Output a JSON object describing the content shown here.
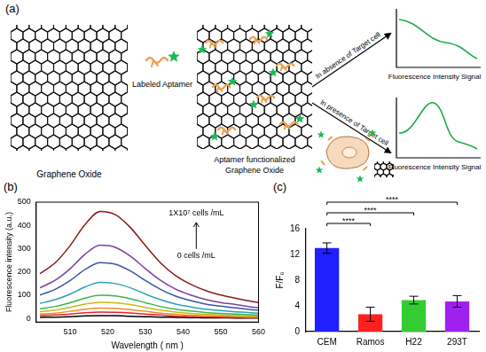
{
  "panel_labels": [
    "(a)",
    "(b)",
    "(c)"
  ],
  "diagram": {
    "graphene_oxide": "Graphene Oxide",
    "labeled_aptamer": "Labeled Aptamer",
    "functionalized": [
      "Aptamer functionalized",
      "Graphene Oxide"
    ],
    "absence": "In absence of Target cell",
    "presence": "In presence of Target cell",
    "signal_labels": [
      "Fluorescence Intensity Signal",
      "Fluorescence Intensity Signal"
    ]
  },
  "chart_data": [
    {
      "type": "line",
      "x_label": "Wavelength ( nm )",
      "y_label": "Fluorescence intensity (a.u.)",
      "annotations": [
        "1X10⁷ cells /mL",
        "0 cells /mL"
      ],
      "x": [
        502,
        506,
        510,
        514,
        518,
        522,
        526,
        530,
        534,
        538,
        542,
        546,
        550,
        554,
        558,
        560
      ],
      "series": [
        {
          "color": "#8b1a1a",
          "values": [
            193,
            239,
            313,
            405,
            460,
            446,
            391,
            313,
            239,
            184,
            147,
            120,
            101,
            87,
            74,
            69
          ]
        },
        {
          "color": "#7b3fa0",
          "values": [
            132,
            164,
            214,
            277,
            315,
            306,
            268,
            214,
            164,
            126,
            101,
            82,
            69,
            60,
            50,
            47
          ]
        },
        {
          "color": "#3a53a4",
          "values": [
            101,
            125,
            163,
            211,
            240,
            233,
            204,
            163,
            125,
            96,
            77,
            62,
            53,
            46,
            38,
            36
          ]
        },
        {
          "color": "#2aa1b0",
          "values": [
            65,
            81,
            105,
            136,
            155,
            150,
            132,
            105,
            81,
            62,
            50,
            40,
            34,
            29,
            25,
            23
          ]
        },
        {
          "color": "#3cb44b",
          "values": [
            42,
            52,
            68,
            88,
            100,
            97,
            85,
            68,
            52,
            40,
            32,
            26,
            22,
            19,
            16,
            15
          ]
        },
        {
          "color": "#c9b81a",
          "values": [
            29,
            36,
            48,
            62,
            70,
            68,
            60,
            48,
            36,
            28,
            22,
            18,
            15,
            13,
            11,
            11
          ]
        },
        {
          "color": "#f08a24",
          "values": [
            19,
            23,
            31,
            40,
            45,
            44,
            38,
            31,
            23,
            18,
            14,
            12,
            10,
            9,
            7,
            7
          ]
        },
        {
          "color": "#e6262a",
          "values": [
            12,
            15,
            19,
            25,
            28,
            27,
            24,
            19,
            15,
            11,
            9,
            7,
            6,
            5,
            4,
            4
          ]
        },
        {
          "color": "#000000",
          "values": [
            5,
            6,
            8,
            11,
            12,
            12,
            10,
            8,
            6,
            5,
            4,
            3,
            3,
            2,
            2,
            2
          ]
        }
      ],
      "xlim": [
        501,
        560
      ],
      "xticks": [
        510,
        520,
        530,
        540,
        550,
        560
      ],
      "ylim": [
        -15,
        500
      ],
      "yticks": [
        0,
        100,
        200,
        300,
        400,
        500
      ],
      "grid": false
    },
    {
      "type": "bar",
      "y_label": "F/F₀",
      "categories": [
        "CEM",
        "Ramos",
        "H22",
        "293T"
      ],
      "values": [
        13.0,
        2.7,
        4.9,
        4.7
      ],
      "errors": [
        0.8,
        1.1,
        0.6,
        0.9
      ],
      "colors": [
        "#1f1fff",
        "#ff2020",
        "#33cc33",
        "#a020f0"
      ],
      "ylim": [
        0,
        16
      ],
      "yticks": [
        0,
        4,
        8,
        12,
        16
      ],
      "grid": false,
      "annotations": [
        {
          "from": "CEM",
          "to": "Ramos",
          "label": "****"
        },
        {
          "from": "CEM",
          "to": "H22",
          "label": "****"
        },
        {
          "from": "CEM",
          "to": "293T",
          "label": "****"
        }
      ]
    }
  ]
}
